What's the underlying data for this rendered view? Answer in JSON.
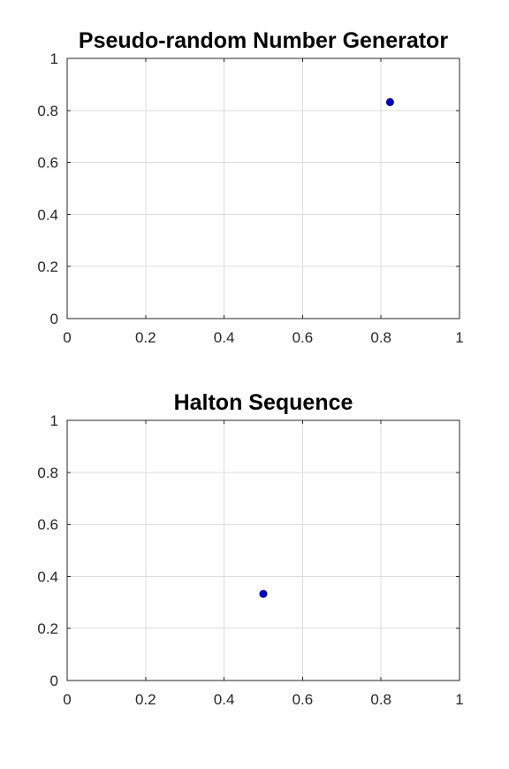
{
  "chart_data": [
    {
      "type": "scatter",
      "title": "Pseudo-random Number Generator",
      "xlabel": "",
      "ylabel": "",
      "xlim": [
        0,
        1
      ],
      "ylim": [
        0,
        1
      ],
      "x_ticks": [
        "0",
        "0.2",
        "0.4",
        "0.6",
        "0.8",
        "1"
      ],
      "y_ticks": [
        "0",
        "0.2",
        "0.4",
        "0.6",
        "0.8",
        "1"
      ],
      "grid": true,
      "points": [
        {
          "x": 0.823,
          "y": 0.832
        }
      ],
      "marker_color": "#0000cc",
      "marker_edge_color": "#00007a"
    },
    {
      "type": "scatter",
      "title": "Halton Sequence",
      "xlabel": "",
      "ylabel": "",
      "xlim": [
        0,
        1
      ],
      "ylim": [
        0,
        1
      ],
      "x_ticks": [
        "0",
        "0.2",
        "0.4",
        "0.6",
        "0.8",
        "1"
      ],
      "y_ticks": [
        "0",
        "0.2",
        "0.4",
        "0.6",
        "0.8",
        "1"
      ],
      "grid": true,
      "points": [
        {
          "x": 0.5,
          "y": 0.333
        }
      ],
      "marker_color": "#0000cc",
      "marker_edge_color": "#00007a"
    }
  ]
}
